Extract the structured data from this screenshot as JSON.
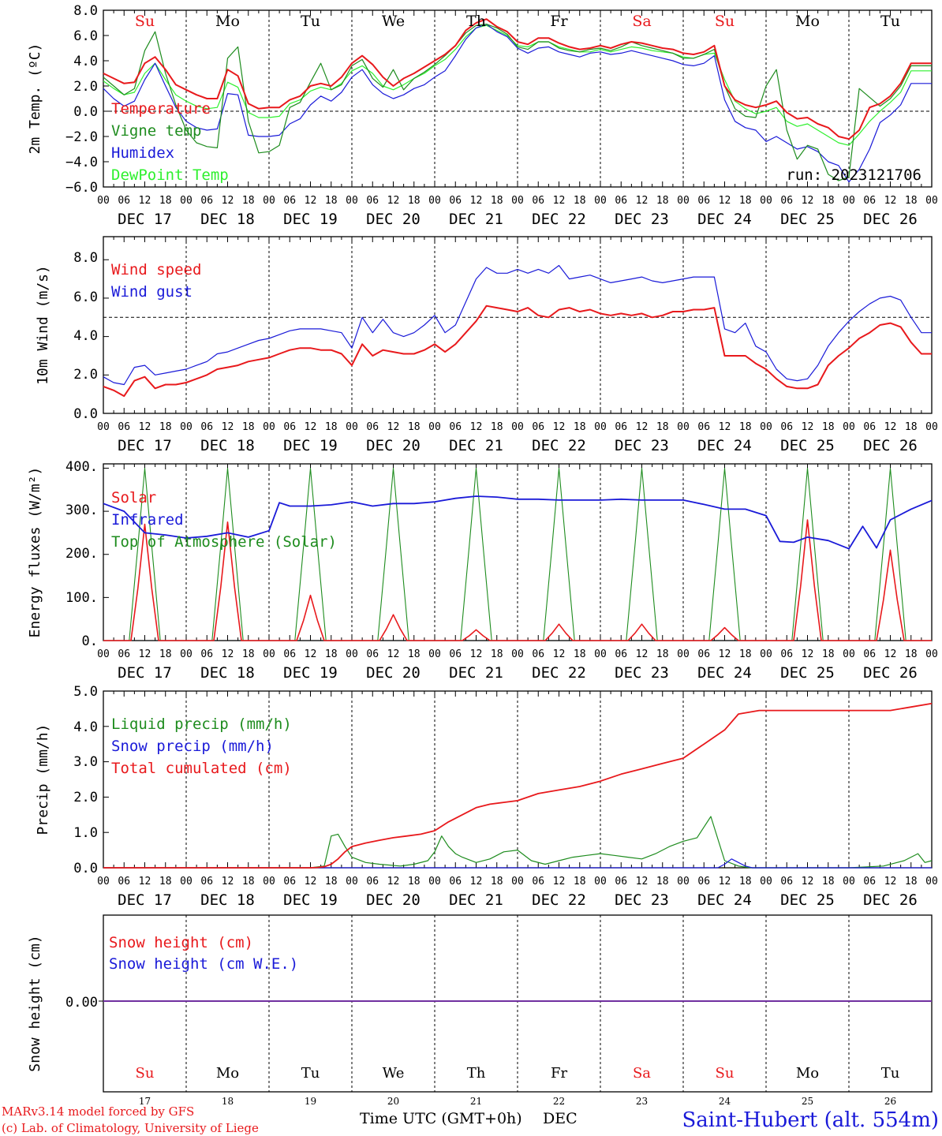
{
  "days": {
    "weekday_labels": [
      "Su",
      "Mo",
      "Tu",
      "We",
      "Th",
      "Fr",
      "Sa",
      "Su",
      "Mo",
      "Tu"
    ],
    "weekday_colors": [
      "#e8191c",
      "#000000",
      "#000000",
      "#000000",
      "#000000",
      "#000000",
      "#e8191c",
      "#e8191c",
      "#000000",
      "#000000"
    ],
    "date_labels": [
      "DEC 17",
      "DEC 18",
      "DEC 19",
      "DEC 20",
      "DEC 21",
      "DEC 22",
      "DEC 23",
      "DEC 24",
      "DEC 25",
      "DEC 26"
    ],
    "hour_ticks": [
      "00",
      "06",
      "12",
      "18"
    ],
    "day_numbers": [
      "17",
      "18",
      "19",
      "20",
      "21",
      "22",
      "23",
      "24",
      "25",
      "26"
    ]
  },
  "colors": {
    "red": "#e8191c",
    "green": "#1e8c1e",
    "blue": "#1a1ad8",
    "lightgreen": "#2ef02e",
    "purple": "#7030a0"
  },
  "footer": {
    "model": "MARv3.14 model forced by GFS",
    "credit": "(c) Lab. of Climatology, University of Liege",
    "axis_title": "Time UTC (GMT+0h)",
    "month": "DEC",
    "station": "Saint-Hubert (alt. 554m)"
  },
  "chart_data": [
    {
      "id": "temperature",
      "type": "line",
      "ylabel": "2m Temp. (ºC)",
      "ylim": [
        -6,
        8
      ],
      "yticks": [
        "8.0",
        "6.0",
        "4.0",
        "2.0",
        "0.0",
        "−2.0",
        "−4.0",
        "−6.0"
      ],
      "ref_line": 0,
      "annotation": "run: 2023121706",
      "x_hours": [
        0,
        3,
        6,
        9,
        12,
        15,
        18,
        21,
        24,
        27,
        30,
        33,
        36,
        39,
        42,
        45,
        48,
        51,
        54,
        57,
        60,
        63,
        66,
        69,
        72,
        75,
        78,
        81,
        84,
        87,
        90,
        93,
        96,
        99,
        102,
        105,
        108,
        111,
        114,
        117,
        120,
        123,
        126,
        129,
        132,
        135,
        138,
        141,
        144,
        147,
        150,
        153,
        156,
        159,
        162,
        165,
        168,
        171,
        174,
        177,
        180,
        183,
        186,
        189,
        192,
        195,
        198,
        201,
        204,
        207,
        210,
        213,
        216,
        219,
        222,
        225,
        228,
        231,
        234,
        237,
        240
      ],
      "series": [
        {
          "name": "Temperature",
          "color": "#e8191c",
          "values": [
            3.0,
            2.6,
            2.2,
            2.3,
            3.8,
            4.3,
            3.3,
            2.1,
            1.7,
            1.3,
            1.0,
            1.0,
            3.3,
            2.8,
            0.6,
            0.2,
            0.3,
            0.3,
            0.9,
            1.2,
            2.0,
            2.2,
            2.0,
            2.7,
            3.8,
            4.4,
            3.7,
            2.7,
            2.0,
            2.6,
            3.0,
            3.5,
            4.0,
            4.5,
            5.2,
            6.4,
            7.0,
            7.3,
            6.7,
            6.3,
            5.5,
            5.3,
            5.8,
            5.8,
            5.4,
            5.1,
            4.9,
            5.0,
            5.2,
            5.0,
            5.3,
            5.5,
            5.4,
            5.2,
            5.0,
            4.9,
            4.6,
            4.5,
            4.7,
            5.2,
            2.0,
            0.9,
            0.5,
            0.3,
            0.5,
            0.8,
            -0.1,
            -0.6,
            -0.5,
            -1.0,
            -1.3,
            -2.0,
            -2.2,
            -1.5,
            0.3,
            0.6,
            1.2,
            2.2,
            3.8,
            3.8,
            3.8
          ]
        },
        {
          "name": "Vigne temp",
          "color": "#1e8c1e",
          "values": [
            2.7,
            2.0,
            1.3,
            1.8,
            4.8,
            6.3,
            3.0,
            0.5,
            -1.5,
            -2.5,
            -2.8,
            -2.9,
            4.2,
            5.1,
            -0.8,
            -3.3,
            -3.2,
            -2.7,
            0.3,
            0.7,
            2.3,
            3.8,
            1.7,
            2.1,
            3.6,
            4.1,
            2.6,
            1.9,
            3.3,
            1.7,
            2.6,
            3.1,
            3.7,
            4.4,
            5.2,
            6.2,
            6.8,
            6.9,
            6.6,
            6.1,
            5.1,
            4.9,
            5.5,
            5.5,
            5.0,
            4.8,
            4.7,
            4.9,
            5.0,
            4.8,
            5.1,
            5.5,
            5.2,
            5.0,
            4.8,
            4.6,
            4.2,
            4.2,
            4.5,
            4.9,
            2.0,
            0.2,
            -0.4,
            -0.5,
            2.0,
            3.3,
            -1.5,
            -3.8,
            -2.7,
            -3.0,
            -5.0,
            -5.5,
            -5.2,
            1.8,
            1.1,
            0.4,
            1.0,
            2.0,
            3.6,
            3.6,
            3.6
          ]
        },
        {
          "name": "Humidex",
          "color": "#1a1ad8",
          "values": [
            1.8,
            1.0,
            0.4,
            0.8,
            2.5,
            3.8,
            2.0,
            0.3,
            -0.8,
            -1.3,
            -1.5,
            -1.4,
            1.4,
            1.3,
            -1.9,
            -2.0,
            -2.0,
            -1.9,
            -1.0,
            -0.6,
            0.5,
            1.2,
            0.8,
            1.5,
            2.7,
            3.3,
            2.1,
            1.4,
            1.0,
            1.3,
            1.8,
            2.1,
            2.7,
            3.2,
            4.4,
            5.7,
            6.6,
            6.9,
            6.3,
            5.9,
            5.0,
            4.6,
            5.0,
            5.1,
            4.7,
            4.5,
            4.3,
            4.6,
            4.7,
            4.5,
            4.6,
            4.8,
            4.6,
            4.4,
            4.2,
            4.0,
            3.7,
            3.6,
            3.8,
            4.4,
            0.9,
            -0.8,
            -1.3,
            -1.5,
            -2.4,
            -2.0,
            -2.5,
            -3.0,
            -2.8,
            -3.2,
            -4.0,
            -4.3,
            -5.6,
            -4.6,
            -3.0,
            -0.9,
            -0.3,
            0.5,
            2.2,
            2.2,
            2.2
          ]
        },
        {
          "name": "DewPoint Temp",
          "color": "#2ef02e",
          "values": [
            2.4,
            1.8,
            1.3,
            1.5,
            3.0,
            3.8,
            2.5,
            1.3,
            0.8,
            0.4,
            0.2,
            0.3,
            2.3,
            1.9,
            -0.1,
            -0.5,
            -0.5,
            -0.4,
            0.6,
            0.9,
            1.6,
            1.9,
            1.7,
            2.2,
            3.2,
            3.6,
            3.0,
            2.0,
            1.7,
            2.1,
            2.6,
            3.0,
            3.6,
            4.1,
            4.9,
            5.9,
            6.6,
            6.8,
            6.4,
            6.0,
            5.2,
            5.1,
            5.5,
            5.5,
            5.1,
            4.9,
            4.7,
            4.7,
            4.9,
            4.7,
            4.9,
            5.1,
            5.0,
            4.8,
            4.7,
            4.6,
            4.3,
            4.2,
            4.5,
            4.6,
            2.5,
            0.8,
            0.2,
            -0.2,
            0.0,
            0.3,
            -0.8,
            -1.2,
            -1.0,
            -1.5,
            -2.0,
            -2.5,
            -2.7,
            -1.8,
            -0.8,
            0.0,
            0.7,
            1.5,
            3.2,
            3.2,
            3.2
          ]
        }
      ]
    },
    {
      "id": "wind",
      "type": "line",
      "ylabel": "10m Wind (m/s)",
      "ylim": [
        0,
        9.2
      ],
      "yticks": [
        "8.0",
        "6.0",
        "4.0",
        "2.0",
        "0.0"
      ],
      "ytick_values": [
        8,
        6,
        4,
        2,
        0
      ],
      "ref_line": 5,
      "x_hours": [
        0,
        3,
        6,
        9,
        12,
        15,
        18,
        21,
        24,
        27,
        30,
        33,
        36,
        39,
        42,
        45,
        48,
        51,
        54,
        57,
        60,
        63,
        66,
        69,
        72,
        75,
        78,
        81,
        84,
        87,
        90,
        93,
        96,
        99,
        102,
        105,
        108,
        111,
        114,
        117,
        120,
        123,
        126,
        129,
        132,
        135,
        138,
        141,
        144,
        147,
        150,
        153,
        156,
        159,
        162,
        165,
        168,
        171,
        174,
        177,
        180,
        183,
        186,
        189,
        192,
        195,
        198,
        201,
        204,
        207,
        210,
        213,
        216,
        219,
        222,
        225,
        228,
        231,
        234,
        237,
        240
      ],
      "series": [
        {
          "name": "Wind speed",
          "color": "#e8191c",
          "values": [
            1.4,
            1.2,
            0.9,
            1.7,
            1.9,
            1.3,
            1.5,
            1.5,
            1.6,
            1.8,
            2.0,
            2.3,
            2.4,
            2.5,
            2.7,
            2.8,
            2.9,
            3.1,
            3.3,
            3.4,
            3.4,
            3.3,
            3.3,
            3.1,
            2.5,
            3.6,
            3.0,
            3.3,
            3.2,
            3.1,
            3.1,
            3.3,
            3.6,
            3.2,
            3.6,
            4.2,
            4.8,
            5.6,
            5.5,
            5.4,
            5.3,
            5.5,
            5.1,
            5.0,
            5.4,
            5.5,
            5.3,
            5.4,
            5.2,
            5.1,
            5.2,
            5.1,
            5.2,
            5.0,
            5.1,
            5.3,
            5.3,
            5.4,
            5.4,
            5.5,
            3.0,
            3.0,
            3.0,
            2.6,
            2.3,
            1.8,
            1.4,
            1.3,
            1.3,
            1.5,
            2.5,
            3.0,
            3.4,
            3.9,
            4.2,
            4.6,
            4.7,
            4.5,
            3.7,
            3.1,
            3.1
          ]
        },
        {
          "name": "Wind gust",
          "color": "#1a1ad8",
          "values": [
            1.9,
            1.6,
            1.5,
            2.4,
            2.5,
            2.0,
            2.1,
            2.2,
            2.3,
            2.5,
            2.7,
            3.1,
            3.2,
            3.4,
            3.6,
            3.8,
            3.9,
            4.1,
            4.3,
            4.4,
            4.4,
            4.4,
            4.3,
            4.2,
            3.4,
            5.0,
            4.2,
            4.9,
            4.2,
            4.0,
            4.2,
            4.6,
            5.1,
            4.2,
            4.6,
            5.8,
            7.0,
            7.6,
            7.3,
            7.3,
            7.5,
            7.3,
            7.5,
            7.3,
            7.7,
            7.0,
            7.1,
            7.2,
            7.0,
            6.8,
            6.9,
            7.0,
            7.1,
            6.9,
            6.8,
            6.9,
            7.0,
            7.1,
            7.1,
            7.1,
            4.4,
            4.2,
            4.7,
            3.5,
            3.2,
            2.3,
            1.8,
            1.7,
            1.8,
            2.5,
            3.5,
            4.2,
            4.8,
            5.3,
            5.7,
            6.0,
            6.1,
            5.9,
            5.0,
            4.2,
            4.2
          ]
        }
      ]
    },
    {
      "id": "energy",
      "type": "line",
      "ylabel": "Energy fluxes (W/m²)",
      "ylim": [
        0,
        410
      ],
      "yticks": [
        "400.",
        "300.",
        "200.",
        "100.",
        "0."
      ],
      "ytick_values": [
        400,
        300,
        200,
        100,
        0
      ],
      "series": [
        {
          "name": "Solar",
          "color": "#e8191c",
          "peaks": [
            270,
            275,
            105,
            60,
            25,
            38,
            38,
            30,
            280,
            210
          ]
        },
        {
          "name": "Infrared",
          "color": "#1a1ad8",
          "x_hours": [
            0,
            6,
            12,
            18,
            24,
            30,
            36,
            42,
            48,
            51,
            54,
            60,
            66,
            72,
            78,
            84,
            90,
            96,
            102,
            108,
            114,
            120,
            126,
            132,
            138,
            144,
            150,
            156,
            162,
            168,
            174,
            180,
            186,
            192,
            196,
            200,
            204,
            210,
            216,
            220,
            224,
            228,
            234,
            240
          ],
          "values": [
            318,
            300,
            250,
            245,
            238,
            242,
            250,
            240,
            255,
            320,
            312,
            312,
            315,
            322,
            312,
            318,
            318,
            322,
            330,
            335,
            333,
            328,
            328,
            326,
            326,
            326,
            328,
            326,
            326,
            326,
            316,
            305,
            305,
            290,
            230,
            228,
            240,
            232,
            213,
            265,
            215,
            280,
            305,
            325
          ]
        },
        {
          "name": "Top of Atmosphere (Solar)",
          "color": "#1e8c1e",
          "peak": 400
        }
      ]
    },
    {
      "id": "precip",
      "type": "line",
      "ylabel": "Precip (mm/h)",
      "ylim": [
        0,
        5
      ],
      "yticks": [
        "5.0",
        "4.0",
        "3.0",
        "2.0",
        "1.0",
        "0.0"
      ],
      "ytick_values": [
        5,
        4,
        3,
        2,
        1,
        0
      ],
      "series": [
        {
          "name": "Liquid precip (mm/h)",
          "color": "#1e8c1e",
          "x_hours": [
            0,
            60,
            64,
            66,
            68,
            70,
            72,
            76,
            80,
            86,
            90,
            94,
            96,
            98,
            100,
            102,
            104,
            108,
            112,
            116,
            120,
            124,
            128,
            132,
            136,
            140,
            144,
            148,
            152,
            156,
            160,
            164,
            168,
            172,
            176,
            180,
            184,
            186,
            188,
            192,
            200,
            216,
            226,
            232,
            236,
            238,
            240
          ],
          "values": [
            0,
            0,
            0.05,
            0.9,
            0.95,
            0.6,
            0.3,
            0.15,
            0.1,
            0.05,
            0.1,
            0.2,
            0.45,
            0.9,
            0.6,
            0.4,
            0.3,
            0.15,
            0.25,
            0.45,
            0.5,
            0.2,
            0.1,
            0.2,
            0.3,
            0.35,
            0.4,
            0.35,
            0.3,
            0.25,
            0.4,
            0.6,
            0.75,
            0.85,
            1.45,
            0.2,
            0.05,
            0.02,
            0,
            0,
            0,
            0,
            0.05,
            0.2,
            0.4,
            0.15,
            0.2
          ]
        },
        {
          "name": "Snow precip (mm/h)",
          "color": "#1a1ad8",
          "x_hours": [
            0,
            178,
            180,
            182,
            184,
            186,
            188,
            240
          ],
          "values": [
            0,
            0,
            0.1,
            0.25,
            0.15,
            0.05,
            0,
            0
          ]
        },
        {
          "name": "Total cumulated (cm)",
          "color": "#e8191c",
          "x_hours": [
            0,
            60,
            62,
            64,
            66,
            68,
            70,
            72,
            76,
            80,
            84,
            88,
            92,
            96,
            100,
            104,
            108,
            112,
            116,
            120,
            126,
            132,
            138,
            144,
            150,
            156,
            162,
            168,
            174,
            180,
            184,
            190,
            200,
            210,
            220,
            228,
            234,
            240
          ],
          "values": [
            0,
            0,
            0.01,
            0.03,
            0.1,
            0.25,
            0.45,
            0.6,
            0.7,
            0.78,
            0.85,
            0.9,
            0.95,
            1.05,
            1.3,
            1.5,
            1.7,
            1.8,
            1.85,
            1.9,
            2.1,
            2.2,
            2.3,
            2.45,
            2.65,
            2.8,
            2.95,
            3.1,
            3.5,
            3.9,
            4.35,
            4.45,
            4.45,
            4.45,
            4.45,
            4.45,
            4.55,
            4.65
          ]
        }
      ]
    },
    {
      "id": "snow",
      "type": "line",
      "ylabel": "Snow height (cm)",
      "yticks": [
        "0.00"
      ],
      "series": [
        {
          "name": "Snow height (cm)",
          "color": "#e8191c",
          "values": [
            0,
            0
          ]
        },
        {
          "name": "Snow height (cm W.E.)",
          "color": "#1a1ad8",
          "values": [
            0,
            0
          ]
        }
      ]
    }
  ]
}
